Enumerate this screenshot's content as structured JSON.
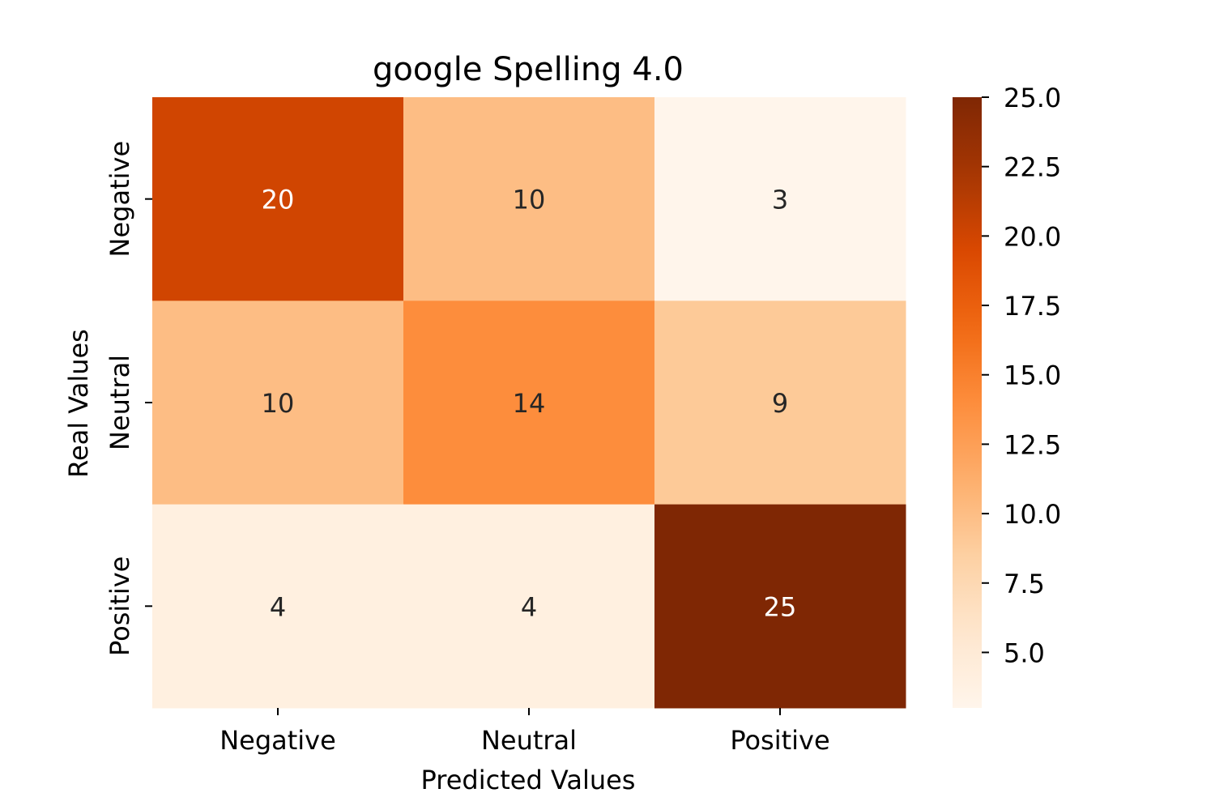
{
  "chart_data": {
    "type": "heatmap",
    "title": "google Spelling 4.0",
    "xlabel": "Predicted Values",
    "ylabel": "Real Values",
    "x_categories": [
      "Negative",
      "Neutral",
      "Positive"
    ],
    "y_categories": [
      "Negative",
      "Neutral",
      "Positive"
    ],
    "values": [
      [
        20,
        10,
        3
      ],
      [
        10,
        14,
        9
      ],
      [
        4,
        4,
        25
      ]
    ],
    "colormap": "Oranges",
    "colorbar": {
      "range": [
        3,
        25
      ],
      "ticks": [
        5.0,
        7.5,
        10.0,
        12.5,
        15.0,
        17.5,
        20.0,
        22.5,
        25.0
      ],
      "tick_labels": [
        "5.0",
        "7.5",
        "10.0",
        "12.5",
        "15.0",
        "17.5",
        "20.0",
        "22.5",
        "25.0"
      ]
    },
    "colors": {
      "text_light": "#ffffff",
      "text_dark": "#262626",
      "axis": "#000000"
    }
  }
}
